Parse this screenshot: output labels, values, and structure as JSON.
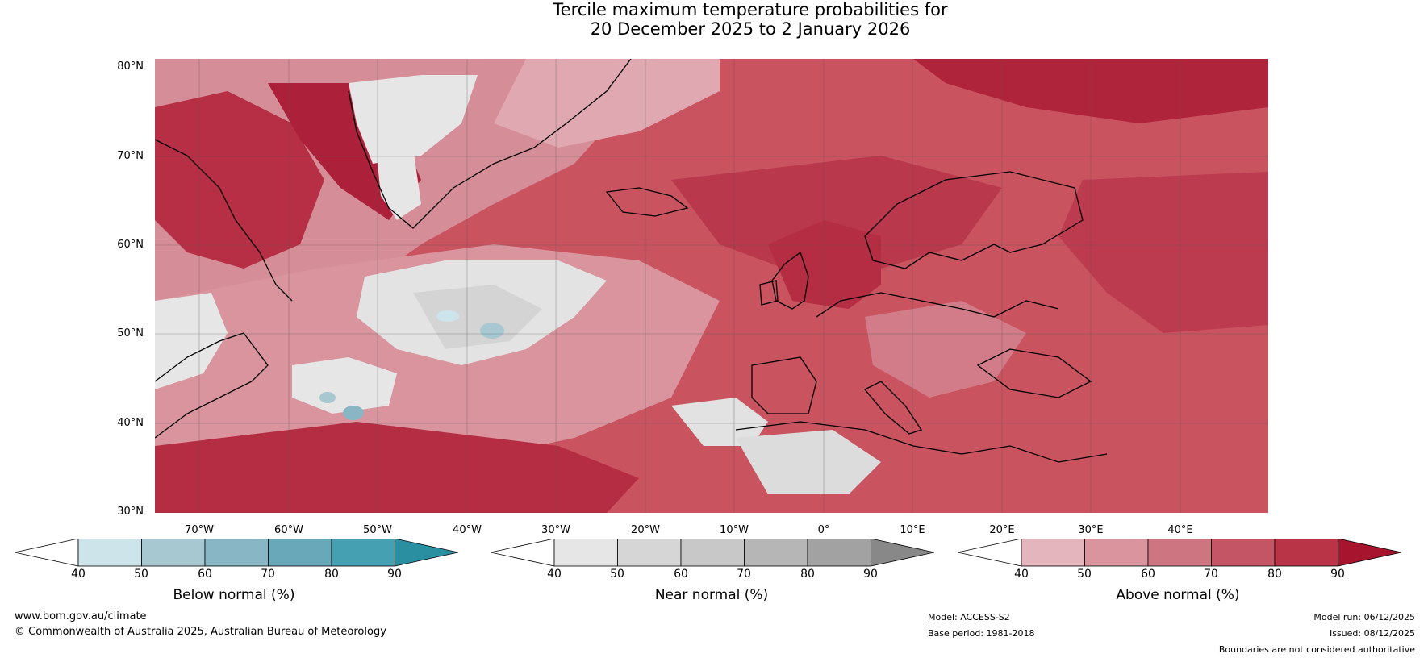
{
  "title": {
    "line1": "Tercile maximum temperature probabilities for",
    "line2": "20 December 2025 to 2 January 2026"
  },
  "map": {
    "lat_labels": [
      "80°N",
      "70°N",
      "60°N",
      "50°N",
      "40°N",
      "30°N"
    ],
    "lon_labels": [
      "70°W",
      "60°W",
      "50°W",
      "40°W",
      "30°W",
      "20°W",
      "10°W",
      "0°",
      "10°E",
      "20°E",
      "30°E",
      "40°E"
    ],
    "lat_range": [
      30,
      81
    ],
    "lon_range": [
      -77,
      48
    ]
  },
  "colorbars": [
    {
      "label": "Below normal (%)",
      "ticks": [
        "40",
        "50",
        "60",
        "70",
        "80",
        "90"
      ],
      "colors": [
        "#ffffff",
        "#cde4ea",
        "#a8c8d1",
        "#88b6c4",
        "#68a8b9",
        "#45a0b2",
        "#2a8fa1"
      ]
    },
    {
      "label": "Near normal (%)",
      "ticks": [
        "40",
        "50",
        "60",
        "70",
        "80",
        "90"
      ],
      "colors": [
        "#ffffff",
        "#e6e6e6",
        "#d6d6d6",
        "#c8c8c8",
        "#b6b6b6",
        "#a2a2a2",
        "#888888"
      ]
    },
    {
      "label": "Above normal (%)",
      "ticks": [
        "40",
        "50",
        "60",
        "70",
        "80",
        "90"
      ],
      "colors": [
        "#ffffff",
        "#e4b5bc",
        "#d9949e",
        "#cd7682",
        "#c45565",
        "#b93447",
        "#a7142e"
      ]
    }
  ],
  "footer": {
    "website": "www.bom.gov.au/climate",
    "copyright": "© Commonwealth of Australia 2025, Australian Bureau of Meteorology",
    "model": "Model: ACCESS-S2",
    "base_period": "Base period: 1981-2018",
    "model_run": "Model run: 06/12/2025",
    "issued": "Issued: 08/12/2025",
    "disclaimer": "Boundaries are not considered authoritative"
  }
}
